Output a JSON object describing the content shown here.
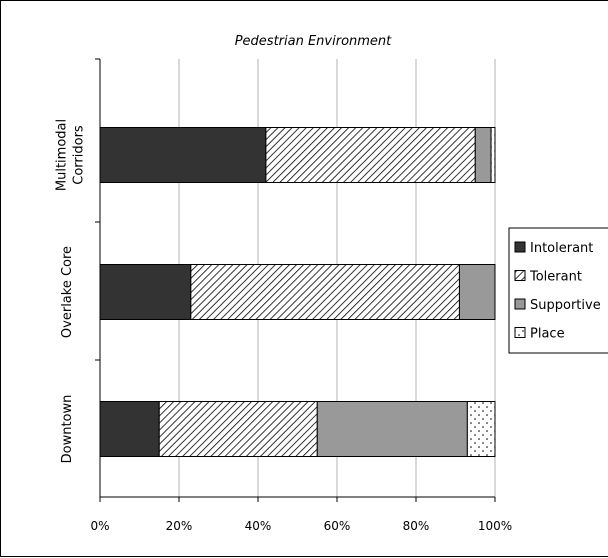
{
  "chart_data": {
    "type": "bar",
    "orientation": "horizontal",
    "stacked": true,
    "title": "Pedestrian Environment",
    "categories": [
      "Multimodal Corridors",
      "Overlake Core",
      "Downtown"
    ],
    "category_lines": [
      [
        "Multimodal",
        "Corridors"
      ],
      [
        "Overlake Core"
      ],
      [
        "Downtown"
      ]
    ],
    "series": [
      {
        "name": "Intolerant",
        "values": [
          42,
          23,
          15
        ],
        "fill": "#333333",
        "pattern": "solid"
      },
      {
        "name": "Tolerant",
        "values": [
          53,
          68,
          40
        ],
        "fill": "#ffffff",
        "pattern": "diagonal-hatch"
      },
      {
        "name": "Supportive",
        "values": [
          4,
          9,
          38
        ],
        "fill": "#999999",
        "pattern": "solid"
      },
      {
        "name": "Place",
        "values": [
          1,
          0,
          7
        ],
        "fill": "#ffffff",
        "pattern": "dots"
      }
    ],
    "xlim": [
      0,
      100
    ],
    "x_ticks": [
      0,
      20,
      40,
      60,
      80,
      100
    ],
    "x_tick_labels": [
      "0%",
      "20%",
      "40%",
      "60%",
      "80%",
      "100%"
    ],
    "xlabel": "",
    "ylabel": "",
    "grid": true,
    "legend_position": "right"
  }
}
